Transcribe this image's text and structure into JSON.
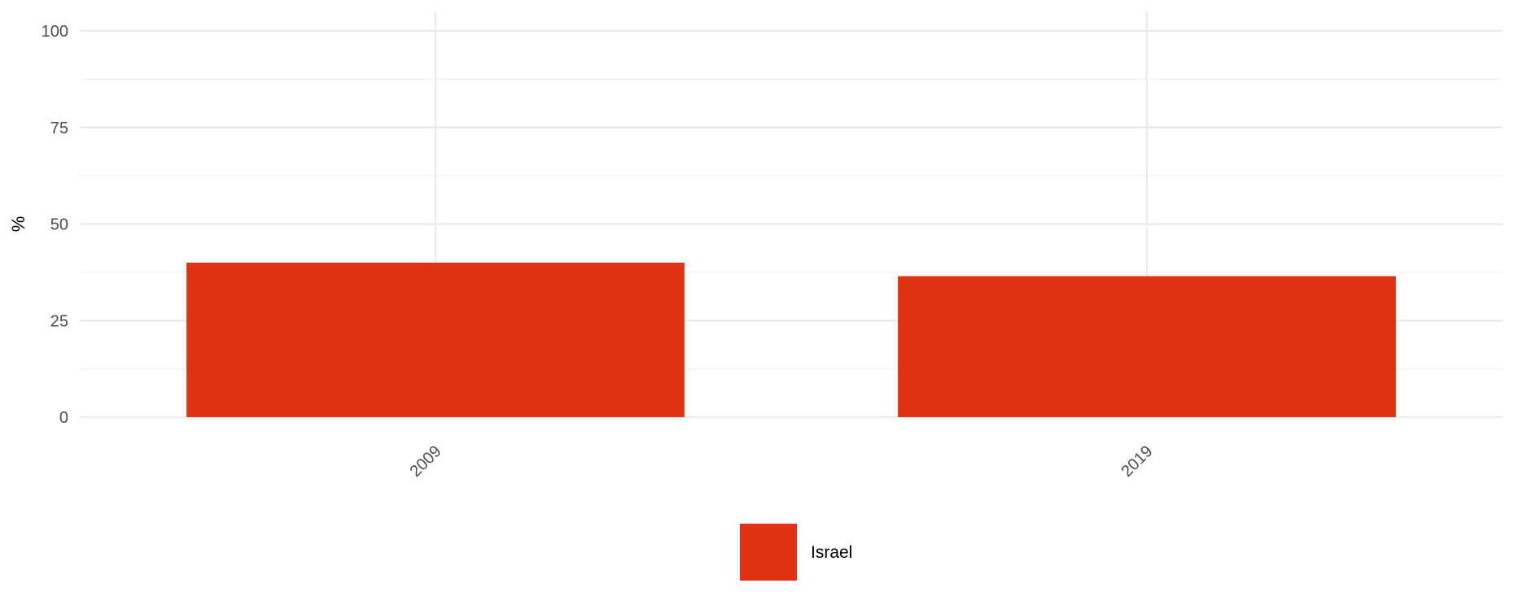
{
  "chart_data": {
    "type": "bar",
    "categories": [
      "2009",
      "2019"
    ],
    "series": [
      {
        "name": "Israel",
        "color": "#e03214",
        "values": [
          40,
          36.5
        ]
      }
    ],
    "title": "",
    "xlabel": "",
    "ylabel": "%",
    "ylim": [
      0,
      100
    ],
    "yticks": [
      0,
      25,
      50,
      75,
      100
    ],
    "grid": true,
    "legend": {
      "position": "bottom"
    }
  }
}
